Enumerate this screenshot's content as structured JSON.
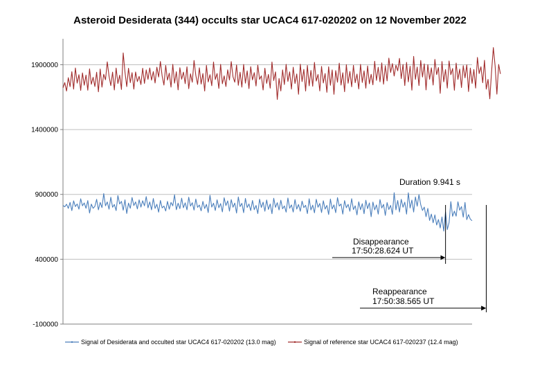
{
  "chart_data": {
    "type": "line",
    "title": "Asteroid Desiderata (344) occults star UCAC4 617-020202 on 12 November 2022",
    "xlabel": "",
    "ylabel": "",
    "ylim": [
      -100000,
      2100000
    ],
    "yticks": [
      -100000,
      400000,
      900000,
      1400000,
      1900000
    ],
    "ytick_labels": [
      "-100000",
      "400000",
      "900000",
      "1400000",
      "1900000"
    ],
    "grid": true,
    "legend_position": "bottom",
    "colors": {
      "series_target": "#4a7ebb",
      "series_reference": "#a02b2b",
      "grid": "#bfbfbf",
      "axis": "#7f7f7f"
    },
    "annotations": {
      "duration": "Duration 9.941 s",
      "disappearance_label": "Disappearance",
      "disappearance_time": "17:50:28.624 UT",
      "reappearance_label": "Reappearance",
      "reappearance_time": "17:50:38.565 UT"
    },
    "disappearance_index": 216,
    "reappearance_index": 239,
    "series": [
      {
        "name": "Signal of Desiderata and occulted star UCAC4 617-020202 (13.0 mag)",
        "color": "#4a7ebb",
        "values": [
          815000,
          804000,
          824000,
          792000,
          838000,
          775000,
          850000,
          806000,
          826000,
          786000,
          866000,
          812000,
          834000,
          793000,
          852000,
          756000,
          825000,
          793000,
          808000,
          862000,
          781000,
          838000,
          798000,
          906000,
          812000,
          842000,
          786000,
          878000,
          801000,
          822000,
          775000,
          891000,
          826000,
          846000,
          778000,
          858000,
          753000,
          833000,
          793000,
          876000,
          814000,
          842000,
          788000,
          858000,
          802000,
          851000,
          812000,
          883000,
          796000,
          842000,
          781000,
          868000,
          792000,
          824000,
          763000,
          853000,
          796000,
          810000,
          772000,
          846000,
          786000,
          838000,
          812000,
          897000,
          782000,
          832000,
          790000,
          871000,
          797000,
          835000,
          781000,
          878000,
          810000,
          836000,
          779000,
          864000,
          800000,
          818000,
          773000,
          846000,
          791000,
          823000,
          760000,
          893000,
          802000,
          832000,
          776000,
          858000,
          797000,
          829000,
          765000,
          874000,
          814000,
          850000,
          771000,
          860000,
          801000,
          833000,
          756000,
          880000,
          806000,
          831000,
          759000,
          869000,
          799000,
          826000,
          775000,
          853000,
          782000,
          815000,
          752000,
          863000,
          799000,
          840000,
          770000,
          857000,
          784000,
          826000,
          751000,
          870000,
          800000,
          836000,
          780000,
          855000,
          789000,
          811000,
          763000,
          872000,
          793000,
          819000,
          764000,
          860000,
          787000,
          822000,
          770000,
          848000,
          798000,
          816000,
          752000,
          866000,
          780000,
          817000,
          758000,
          862000,
          801000,
          830000,
          760000,
          851000,
          787000,
          815000,
          745000,
          864000,
          788000,
          819000,
          759000,
          875000,
          810000,
          826000,
          748000,
          852000,
          797000,
          823000,
          770000,
          867000,
          783000,
          812000,
          742000,
          843000,
          782000,
          828000,
          751000,
          855000,
          790000,
          834000,
          728000,
          841000,
          781000,
          819000,
          748000,
          860000,
          795000,
          823000,
          738000,
          837000,
          784000,
          815000,
          746000,
          913000,
          781000,
          853000,
          764000,
          862000,
          801000,
          840000,
          748000,
          912000,
          795000,
          856000,
          764000,
          880000,
          809000,
          898000,
          820000,
          776000,
          802000,
          728000,
          792000,
          699000,
          748000,
          681000,
          742000,
          664000,
          706000,
          641000,
          726000,
          617000,
          765000,
          629000,
          682000,
          844000,
          731000,
          771000,
          732000,
          843000,
          778000,
          806000,
          725000,
          838000,
          705000,
          744000,
          709000,
          697000
        ]
      },
      {
        "name": "Signal of reference star UCAC4 617-020237 (12.4 mag)",
        "color": "#a02b2b",
        "values": [
          1721000,
          1762000,
          1697000,
          1800000,
          1731000,
          1846000,
          1712000,
          1875000,
          1758000,
          1823000,
          1702000,
          1837000,
          1742000,
          1820000,
          1703000,
          1868000,
          1749000,
          1803000,
          1732000,
          1842000,
          1691000,
          1867000,
          1727000,
          1826000,
          1784000,
          1922000,
          1812000,
          1739000,
          1843000,
          1705000,
          1874000,
          1755000,
          1819000,
          1709000,
          1991000,
          1843000,
          1731000,
          1873000,
          1762000,
          1839000,
          1712000,
          1844000,
          1770000,
          1810000,
          1747000,
          1873000,
          1756000,
          1860000,
          1787000,
          1875000,
          1781000,
          1847000,
          1759000,
          1881000,
          1805000,
          1925000,
          1812000,
          1743000,
          1894000,
          1781000,
          1835000,
          1727000,
          1903000,
          1758000,
          1846000,
          1706000,
          1877000,
          1788000,
          1843000,
          1754000,
          1884000,
          1715000,
          1830000,
          1765000,
          1933000,
          1818000,
          1748000,
          1876000,
          1751000,
          1832000,
          1697000,
          1895000,
          1767000,
          1823000,
          1738000,
          1921000,
          1786000,
          1832000,
          1717000,
          1903000,
          1753000,
          1814000,
          1732000,
          1861000,
          1782000,
          1924000,
          1807000,
          1765000,
          1898000,
          1741000,
          1842000,
          1727000,
          1902000,
          1758000,
          1853000,
          1716000,
          1885000,
          1783000,
          1839000,
          1736000,
          1897000,
          1787000,
          1814000,
          1705000,
          1873000,
          1756000,
          1825000,
          1719000,
          1921000,
          1778000,
          1845000,
          1632000,
          1794000,
          1698000,
          1860000,
          1747000,
          1903000,
          1771000,
          1845000,
          1712000,
          1881000,
          1755000,
          1829000,
          1672000,
          1904000,
          1770000,
          1864000,
          1697000,
          1894000,
          1737000,
          1856000,
          1734000,
          1918000,
          1774000,
          1825000,
          1698000,
          1887000,
          1759000,
          1832000,
          1687000,
          1884000,
          1741000,
          1860000,
          1672000,
          1855000,
          1765000,
          1912000,
          1743000,
          1838000,
          1692000,
          1901000,
          1757000,
          1848000,
          1730000,
          1895000,
          1761000,
          1828000,
          1713000,
          1903000,
          1763000,
          1853000,
          1719000,
          1891000,
          1753000,
          1826000,
          1745000,
          1927000,
          1779000,
          1880000,
          1768000,
          1914000,
          1750000,
          1892000,
          1775000,
          1951000,
          1840000,
          1909000,
          1813000,
          1896000,
          1853000,
          1949000,
          1793000,
          1902000,
          1739000,
          1918000,
          1768000,
          1888000,
          1704000,
          1964000,
          1787000,
          1882000,
          1739000,
          1933000,
          1805000,
          1907000,
          1706000,
          1901000,
          1788000,
          1876000,
          1743000,
          1941000,
          1824000,
          1878000,
          1679000,
          1925000,
          1768000,
          1863000,
          1720000,
          1929000,
          1823000,
          1871000,
          1703000,
          1913000,
          1787000,
          1866000,
          1724000,
          1893000,
          1799000,
          1899000,
          1693000,
          1874000,
          1756000,
          1863000,
          1720000,
          1956000,
          1832000,
          1884000,
          1761000,
          1934000,
          1712000,
          1787000,
          1637000,
          1846000,
          2032000,
          1891000,
          1673000,
          1902000,
          1829000
        ]
      }
    ]
  }
}
